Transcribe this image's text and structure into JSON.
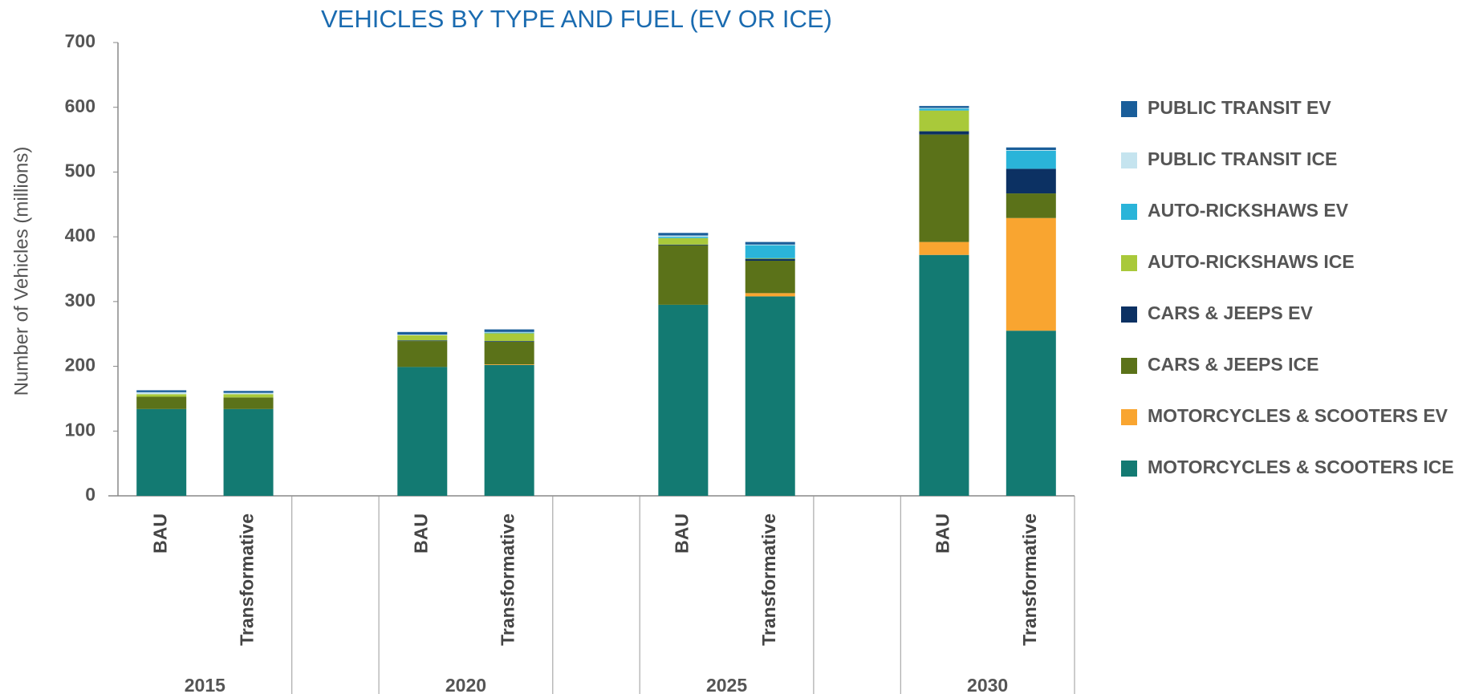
{
  "chart_data": {
    "type": "stacked_bar",
    "title": "VEHICLES BY TYPE AND FUEL (EV OR ICE)",
    "y_label": "Number of Vehicles (millions)",
    "categories": [
      "BAU",
      "Transformative",
      "BAU",
      "Transformative",
      "BAU",
      "Transformative",
      "BAU",
      "Transformative"
    ],
    "groups": [
      "2015",
      "2020",
      "2025",
      "2030"
    ],
    "ylim": [
      0,
      700
    ],
    "yticks": [
      0,
      100,
      200,
      300,
      400,
      500,
      600,
      700
    ],
    "legend": "right",
    "series": [
      {
        "name": "MOTORCYCLES & SCOOTERS ICE",
        "color": "#137a72",
        "values": [
          134,
          134,
          199,
          202,
          295,
          308,
          372,
          255
        ]
      },
      {
        "name": "MOTORCYCLES & SCOOTERS EV",
        "color": "#f9a530",
        "values": [
          0,
          0,
          0,
          1,
          0,
          5,
          20,
          174
        ]
      },
      {
        "name": "CARS & JEEPS ICE",
        "color": "#5b7219",
        "values": [
          19,
          18,
          40,
          35,
          92,
          50,
          166,
          38
        ]
      },
      {
        "name": "CARS & JEEPS EV",
        "color": "#0c3163",
        "values": [
          0,
          0,
          1,
          1,
          1,
          3,
          5,
          38
        ]
      },
      {
        "name": "AUTO-RICKSHAWS ICE",
        "color": "#a9c93a",
        "values": [
          4,
          5,
          8,
          12,
          10,
          1,
          32,
          0
        ]
      },
      {
        "name": "AUTO-RICKSHAWS EV",
        "color": "#2ab4d9",
        "values": [
          0,
          0,
          0,
          1,
          2,
          20,
          3,
          28
        ]
      },
      {
        "name": "PUBLIC TRANSIT ICE",
        "color": "#c5e4ef",
        "values": [
          3,
          2,
          1,
          1,
          2,
          1,
          1,
          1
        ]
      },
      {
        "name": "PUBLIC TRANSIT EV",
        "color": "#1a5e9a",
        "values": [
          3,
          3,
          4,
          4,
          4,
          4,
          3,
          4
        ]
      }
    ]
  }
}
